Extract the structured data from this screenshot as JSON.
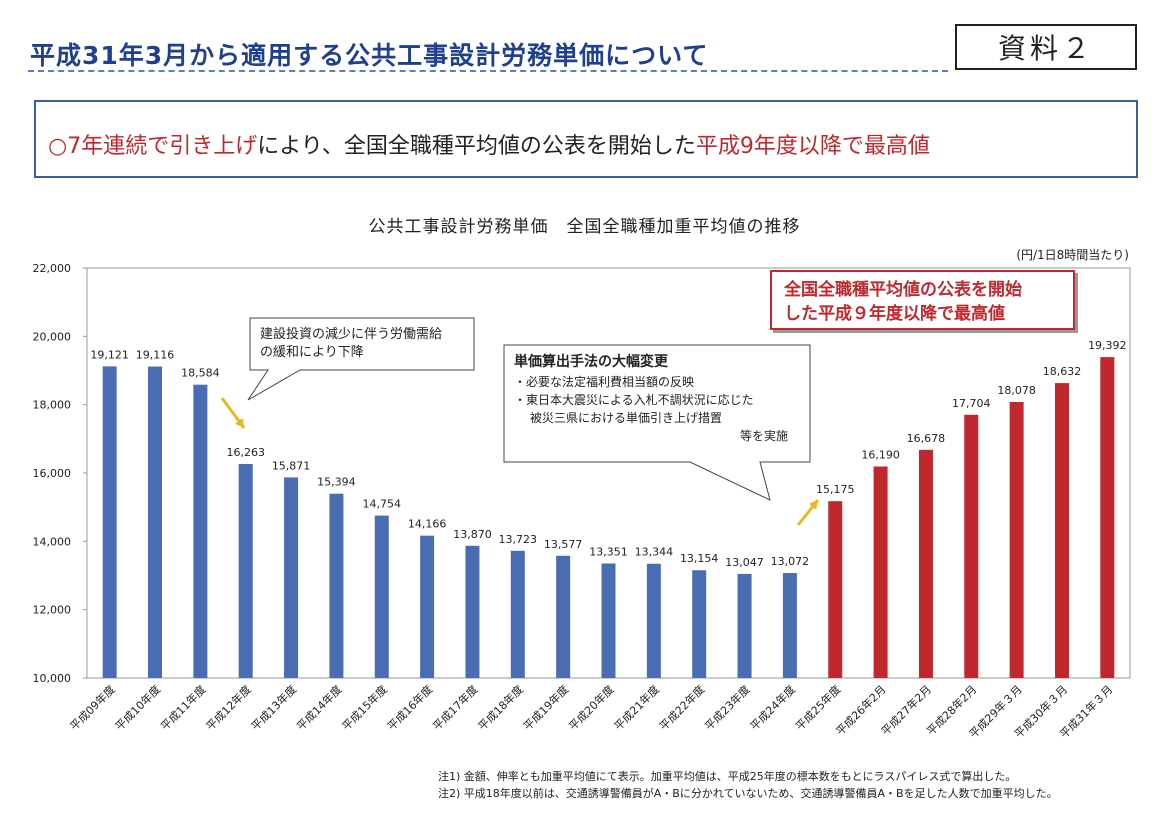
{
  "header": {
    "title": "平成31年3月から適用する公共工事設計労務単価について",
    "doc_label": "資料２"
  },
  "headline": {
    "part1_red": "○7年連続で引き上げ",
    "part2": "により、全国全職種平均値の公表を開始した",
    "part3_red": "平成9年度以降で最高値"
  },
  "chart_data": {
    "type": "bar",
    "title": "公共工事設計労務単価　全国全職種加重平均値の推移",
    "unit_label": "(円/1日8時間当たり)",
    "categories": [
      "平成09年度",
      "平成10年度",
      "平成11年度",
      "平成12年度",
      "平成13年度",
      "平成14年度",
      "平成15年度",
      "平成16年度",
      "平成17年度",
      "平成18年度",
      "平成19年度",
      "平成20年度",
      "平成21年度",
      "平成22年度",
      "平成23年度",
      "平成24年度",
      "平成25年度",
      "平成26年2月",
      "平成27年2月",
      "平成28年2月",
      "平成29年３月",
      "平成30年３月",
      "平成31年３月"
    ],
    "values": [
      19121,
      19116,
      18584,
      16263,
      15871,
      15394,
      14754,
      14166,
      13870,
      13723,
      13577,
      13351,
      13344,
      13154,
      13047,
      13072,
      15175,
      16190,
      16678,
      17704,
      18078,
      18632,
      19392
    ],
    "value_labels": [
      "19,121",
      "19,116",
      "18,584",
      "16,263",
      "15,871",
      "15,394",
      "14,754",
      "14,166",
      "13,870",
      "13,723",
      "13,577",
      "13,351",
      "13,344",
      "13,154",
      "13,047",
      "13,072",
      "15,175",
      "16,190",
      "16,678",
      "17,704",
      "18,078",
      "18,632",
      "19,392"
    ],
    "ylim": [
      10000,
      22000
    ],
    "yticks": [
      "10,000",
      "12,000",
      "14,000",
      "16,000",
      "18,000",
      "20,000",
      "22,000"
    ],
    "grid": false,
    "colors": {
      "before": "#4a6cb3",
      "after": "#c0282d",
      "arrow": "#e8b820"
    }
  },
  "callouts": {
    "decline": [
      "建設投資の減少に伴う労働需給",
      "の緩和により下降"
    ],
    "method": {
      "title": "単価算出手法の大幅変更",
      "lines": [
        "・必要な法定福利費相当額の反映",
        "・東日本大震災による入札不調状況に応じた",
        "被災三県における単価引き上げ措置",
        "等を実施"
      ]
    },
    "highest": [
      "全国全職種平均値の公表を開始",
      "した平成９年度以降で最高値"
    ]
  },
  "notes": [
    "注1) 金額、伸率とも加重平均値にて表示。加重平均値は、平成25年度の標本数をもとにラスパイレス式で算出した。",
    "注2) 平成18年度以前は、交通誘導警備員がA・Bに分かれていないため、交通誘導警備員A・Bを足した人数で加重平均した。"
  ]
}
